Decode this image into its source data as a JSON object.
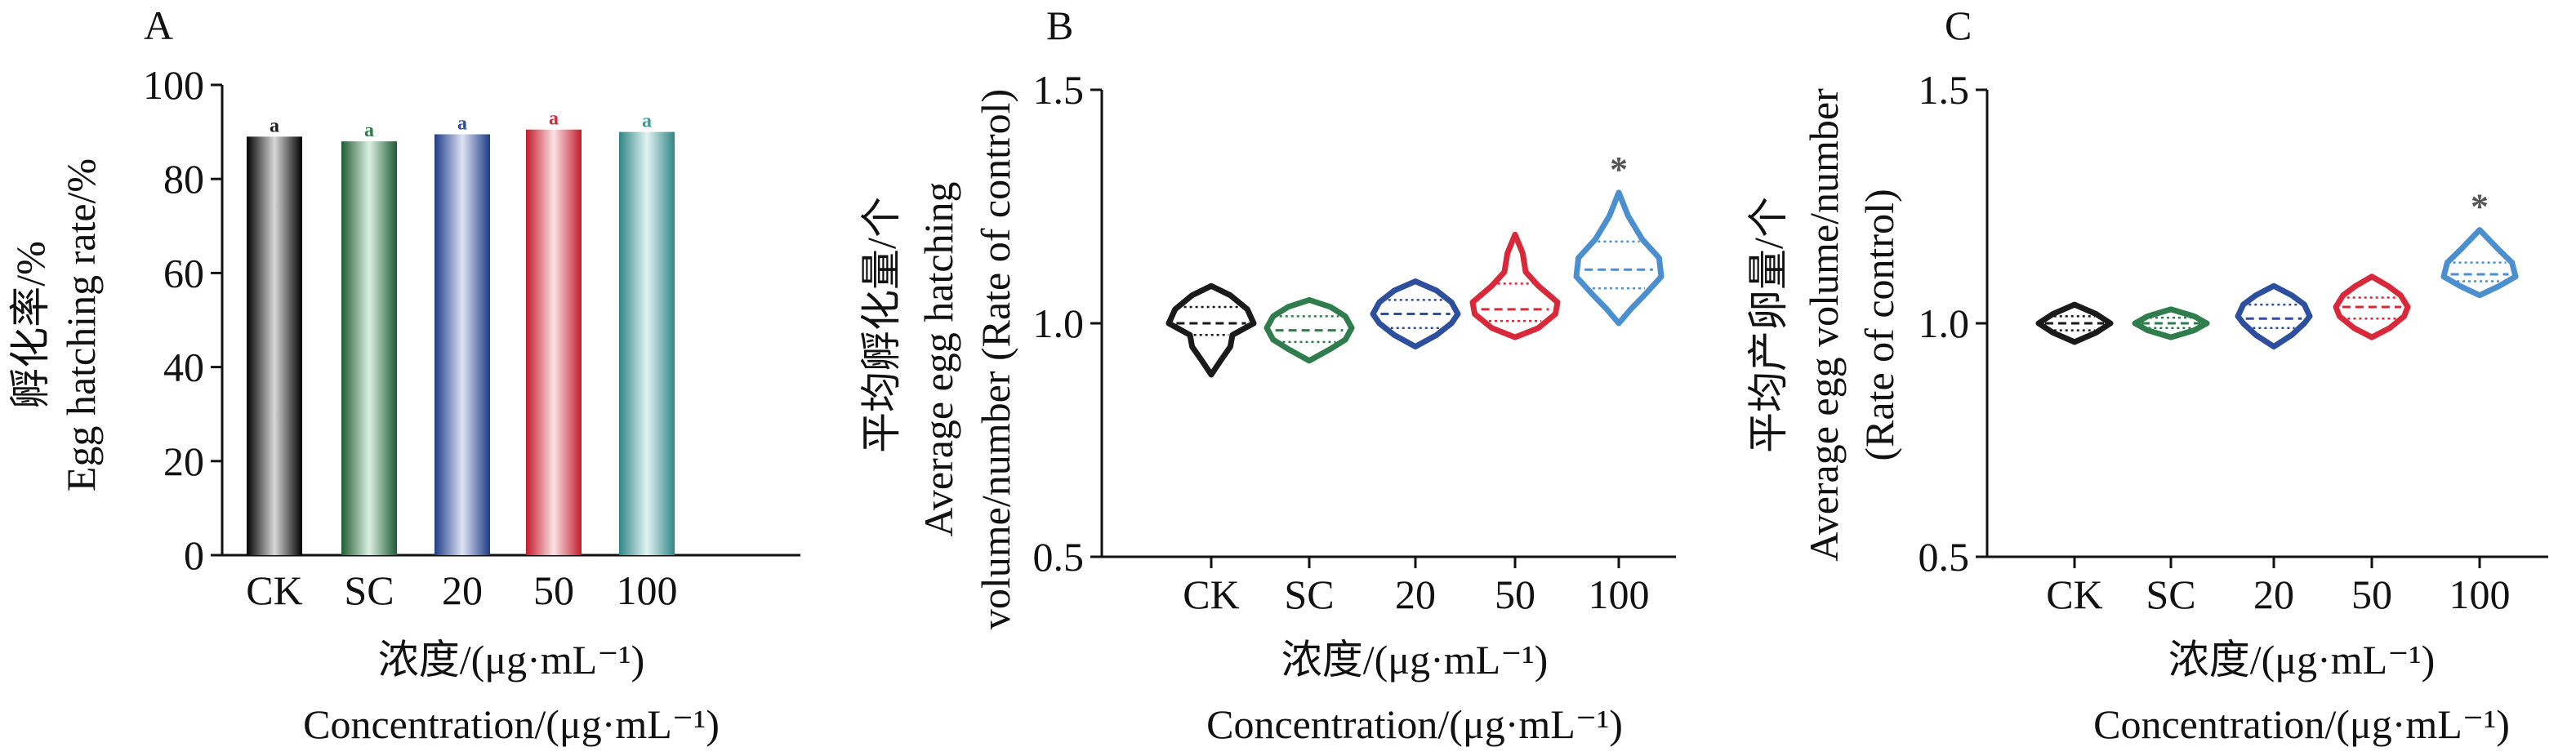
{
  "figure": {
    "colors": {
      "CK": "#1a1a1a",
      "SC": "#2f7d4c",
      "20": "#2e4f9e",
      "50": "#d8283a",
      "100": "#4b8fcf",
      "100_bar": "#3f9a9a"
    }
  },
  "chart_data": [
    {
      "panel": "A",
      "type": "bar",
      "ylabel_cn": "孵化率/%",
      "ylabel_en": "Egg hatching rate/%",
      "xlabel_cn": "浓度/(μg·mL⁻¹)",
      "xlabel_en": "Concentration/(μg·mL⁻¹)",
      "categories": [
        "CK",
        "SC",
        "20",
        "50",
        "100"
      ],
      "values": [
        89,
        88,
        89.5,
        90.5,
        90
      ],
      "significance": [
        "a",
        "a",
        "a",
        "a",
        "a"
      ],
      "ylim": [
        0,
        100
      ],
      "yticks": [
        0,
        20,
        40,
        60,
        80,
        100
      ],
      "grid": false
    },
    {
      "panel": "B",
      "type": "violin",
      "ylabel_cn": "平均孵化量/个",
      "ylabel_en_1": "Average egg hatching",
      "ylabel_en_2": "volume/number (Rate of control)",
      "xlabel_cn": "浓度/(μg·mL⁻¹)",
      "xlabel_en": "Concentration/(μg·mL⁻¹)",
      "categories": [
        "CK",
        "SC",
        "20",
        "50",
        "100"
      ],
      "ylim": [
        0.5,
        1.5
      ],
      "yticks": [
        "0.5",
        "1.0",
        "1.5"
      ],
      "violins": [
        {
          "category": "CK",
          "min": 0.89,
          "max": 1.08,
          "q1": 0.975,
          "median": 1.0,
          "q3": 1.035,
          "shape": [
            [
              0.89,
              0.0
            ],
            [
              0.92,
              0.22
            ],
            [
              0.95,
              0.45
            ],
            [
              0.975,
              0.5
            ],
            [
              1.0,
              1.0
            ],
            [
              1.03,
              0.85
            ],
            [
              1.06,
              0.45
            ],
            [
              1.08,
              0.0
            ]
          ]
        },
        {
          "category": "SC",
          "min": 0.92,
          "max": 1.05,
          "q1": 0.96,
          "median": 0.985,
          "q3": 1.015,
          "shape": [
            [
              0.92,
              0.0
            ],
            [
              0.945,
              0.5
            ],
            [
              0.965,
              0.85
            ],
            [
              0.99,
              1.0
            ],
            [
              1.015,
              0.85
            ],
            [
              1.035,
              0.5
            ],
            [
              1.05,
              0.0
            ]
          ]
        },
        {
          "category": "20",
          "min": 0.95,
          "max": 1.09,
          "q1": 0.99,
          "median": 1.02,
          "q3": 1.05,
          "shape": [
            [
              0.95,
              0.0
            ],
            [
              0.975,
              0.5
            ],
            [
              1.0,
              0.85
            ],
            [
              1.02,
              1.0
            ],
            [
              1.045,
              0.85
            ],
            [
              1.07,
              0.5
            ],
            [
              1.09,
              0.0
            ]
          ]
        },
        {
          "category": "50",
          "min": 0.97,
          "max": 1.19,
          "q1": 1.005,
          "median": 1.03,
          "q3": 1.085,
          "shape": [
            [
              0.97,
              0.0
            ],
            [
              0.99,
              0.55
            ],
            [
              1.02,
              0.95
            ],
            [
              1.045,
              1.0
            ],
            [
              1.08,
              0.55
            ],
            [
              1.11,
              0.25
            ],
            [
              1.15,
              0.18
            ],
            [
              1.19,
              0.0
            ]
          ]
        },
        {
          "category": "100",
          "min": 1.0,
          "max": 1.28,
          "q1": 1.075,
          "median": 1.115,
          "q3": 1.175,
          "shape": [
            [
              1.0,
              0.0
            ],
            [
              1.03,
              0.28
            ],
            [
              1.06,
              0.6
            ],
            [
              1.1,
              1.0
            ],
            [
              1.14,
              0.95
            ],
            [
              1.18,
              0.55
            ],
            [
              1.23,
              0.22
            ],
            [
              1.28,
              0.0
            ]
          ]
        }
      ],
      "annotations": [
        {
          "category": "100",
          "text": "*"
        }
      ],
      "grid": false
    },
    {
      "panel": "C",
      "type": "violin",
      "ylabel_cn": "平均产卵量/个",
      "ylabel_en_1": "Average egg volume/number",
      "ylabel_en_2": "(Rate of control)",
      "xlabel_cn": "浓度/(μg·mL⁻¹)",
      "xlabel_en": "Concentration/(μg·mL⁻¹)",
      "categories": [
        "CK",
        "SC",
        "20",
        "50",
        "100"
      ],
      "ylim": [
        0.5,
        1.5
      ],
      "yticks": [
        "0.5",
        "1.0",
        "1.5"
      ],
      "violins": [
        {
          "category": "CK",
          "min": 0.96,
          "max": 1.04,
          "q1": 0.985,
          "median": 1.0,
          "q3": 1.015,
          "shape": [
            [
              0.96,
              0.0
            ],
            [
              0.98,
              0.6
            ],
            [
              1.0,
              1.0
            ],
            [
              1.02,
              0.6
            ],
            [
              1.04,
              0.0
            ]
          ]
        },
        {
          "category": "SC",
          "min": 0.97,
          "max": 1.03,
          "q1": 0.99,
          "median": 1.0,
          "q3": 1.012,
          "shape": [
            [
              0.97,
              0.0
            ],
            [
              0.985,
              0.65
            ],
            [
              1.0,
              1.0
            ],
            [
              1.015,
              0.65
            ],
            [
              1.03,
              0.0
            ]
          ]
        },
        {
          "category": "20",
          "min": 0.95,
          "max": 1.08,
          "q1": 0.99,
          "median": 1.01,
          "q3": 1.04,
          "shape": [
            [
              0.95,
              0.0
            ],
            [
              0.975,
              0.5
            ],
            [
              1.0,
              0.85
            ],
            [
              1.015,
              1.0
            ],
            [
              1.04,
              0.85
            ],
            [
              1.06,
              0.5
            ],
            [
              1.08,
              0.0
            ]
          ]
        },
        {
          "category": "50",
          "min": 0.97,
          "max": 1.1,
          "q1": 1.01,
          "median": 1.035,
          "q3": 1.055,
          "shape": [
            [
              0.97,
              0.0
            ],
            [
              0.99,
              0.5
            ],
            [
              1.015,
              0.9
            ],
            [
              1.035,
              1.0
            ],
            [
              1.06,
              0.8
            ],
            [
              1.08,
              0.45
            ],
            [
              1.1,
              0.0
            ]
          ]
        },
        {
          "category": "100",
          "min": 1.06,
          "max": 1.2,
          "q1": 1.09,
          "median": 1.105,
          "q3": 1.13,
          "shape": [
            [
              1.06,
              0.0
            ],
            [
              1.08,
              0.55
            ],
            [
              1.1,
              1.0
            ],
            [
              1.13,
              0.9
            ],
            [
              1.16,
              0.5
            ],
            [
              1.2,
              0.0
            ]
          ]
        }
      ],
      "annotations": [
        {
          "category": "100",
          "text": "*"
        }
      ],
      "grid": false
    }
  ]
}
